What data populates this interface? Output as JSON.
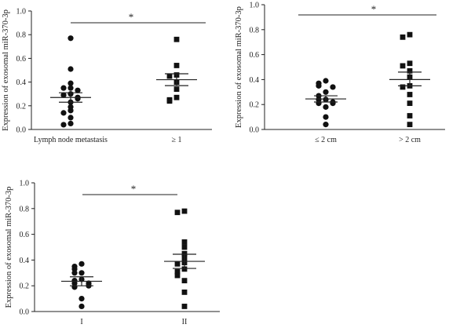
{
  "chart_data": [
    {
      "type": "scatter",
      "ylabel": "Expression of exosomal miR-370-3p",
      "ylim": [
        0,
        1.0
      ],
      "yticks": [
        "0.0",
        "0.2",
        "0.4",
        "0.6",
        "0.8",
        "1.0"
      ],
      "categories": [
        "Lymph node metastasis",
        "≥ 1"
      ],
      "significance": "*",
      "groups": [
        {
          "marker": "circle",
          "mean": 0.27,
          "sem_low": 0.23,
          "sem_high": 0.31,
          "values": [
            0.77,
            0.51,
            0.39,
            0.35,
            0.35,
            0.33,
            0.3,
            0.29,
            0.27,
            0.26,
            0.23,
            0.19,
            0.16,
            0.14,
            0.1,
            0.05,
            0.04
          ]
        },
        {
          "marker": "square",
          "mean": 0.42,
          "sem_low": 0.37,
          "sem_high": 0.47,
          "values": [
            0.76,
            0.54,
            0.46,
            0.45,
            0.4,
            0.34,
            0.27,
            0.25,
            0.24
          ]
        }
      ]
    },
    {
      "type": "scatter",
      "ylabel": "Expression of exosomal miR-370-3p",
      "ylim": [
        0,
        1.0
      ],
      "yticks": [
        "0.0",
        "0.2",
        "0.4",
        "0.6",
        "0.8",
        "1.0"
      ],
      "categories": [
        "≤ 2 cm",
        "> 2 cm"
      ],
      "significance": "*",
      "groups": [
        {
          "marker": "circle",
          "mean": 0.245,
          "sem_low": 0.22,
          "sem_high": 0.27,
          "values": [
            0.39,
            0.37,
            0.35,
            0.34,
            0.3,
            0.27,
            0.24,
            0.24,
            0.22,
            0.21,
            0.21,
            0.18,
            0.1,
            0.04
          ]
        },
        {
          "marker": "square",
          "mean": 0.4,
          "sem_low": 0.35,
          "sem_high": 0.46,
          "values": [
            0.76,
            0.74,
            0.53,
            0.51,
            0.47,
            0.42,
            0.35,
            0.34,
            0.28,
            0.21,
            0.11,
            0.04
          ]
        }
      ]
    },
    {
      "type": "scatter",
      "ylabel": "Expression of exosomal miR-370-3p",
      "ylim": [
        0,
        1.0
      ],
      "yticks": [
        "0.0",
        "0.2",
        "0.4",
        "0.6",
        "0.8",
        "1.0"
      ],
      "categories": [
        "I",
        "II"
      ],
      "significance": "*",
      "groups": [
        {
          "marker": "circle",
          "mean": 0.235,
          "sem_low": 0.2,
          "sem_high": 0.27,
          "values": [
            0.37,
            0.35,
            0.33,
            0.3,
            0.3,
            0.25,
            0.24,
            0.22,
            0.22,
            0.2,
            0.19,
            0.1,
            0.04
          ]
        },
        {
          "marker": "square",
          "mean": 0.39,
          "sem_low": 0.335,
          "sem_high": 0.445,
          "values": [
            0.78,
            0.77,
            0.54,
            0.5,
            0.45,
            0.42,
            0.38,
            0.37,
            0.33,
            0.31,
            0.28,
            0.24,
            0.15,
            0.04
          ]
        }
      ]
    }
  ]
}
